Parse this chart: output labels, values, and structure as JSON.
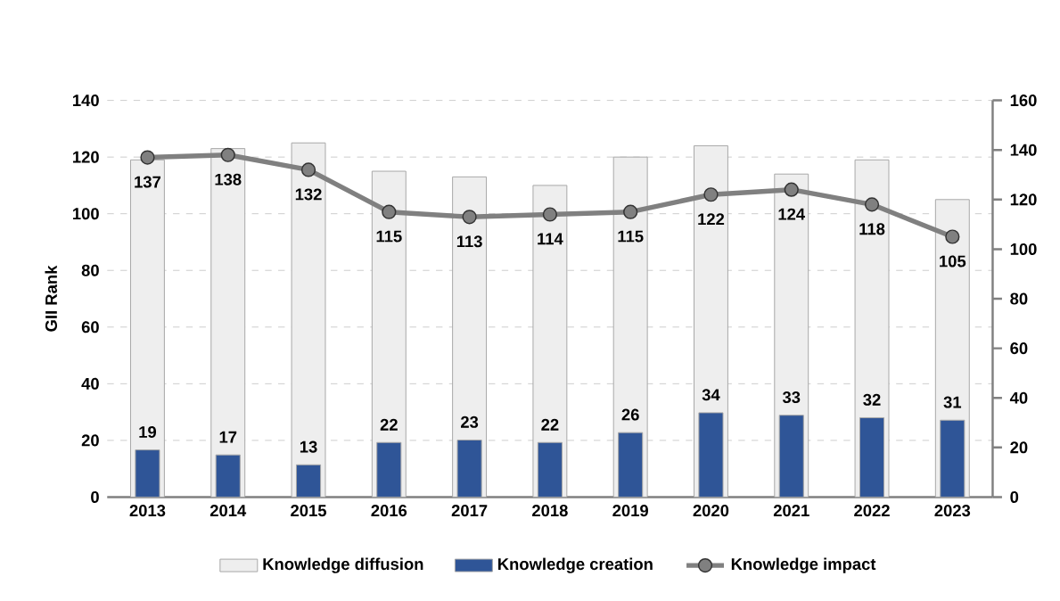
{
  "chart_data": {
    "type": "bar",
    "ylabel": "GII Rank",
    "categories": [
      "2013",
      "2014",
      "2015",
      "2016",
      "2017",
      "2018",
      "2019",
      "2020",
      "2021",
      "2022",
      "2023"
    ],
    "series": [
      {
        "name": "Knowledge diffusion",
        "color": "#eeeeee",
        "values": [
          119,
          123,
          125,
          115,
          113,
          110,
          120,
          124,
          114,
          119,
          105
        ]
      },
      {
        "name": "Knowledge creation",
        "axis": "y2",
        "color": "#2f5597",
        "values": [
          19,
          17,
          13,
          22,
          23,
          22,
          26,
          34,
          33,
          32,
          31
        ],
        "value_labels": [
          "19",
          "17",
          "13",
          "22",
          "23",
          "22",
          "26",
          "34",
          "33",
          "32",
          "31"
        ]
      },
      {
        "name": "Knowledge impact",
        "type": "line",
        "axis": "y2",
        "color": "#808080",
        "values": [
          137,
          138,
          132,
          115,
          113,
          114,
          115,
          122,
          124,
          118,
          105
        ],
        "value_labels": [
          "137",
          "138",
          "132",
          "115",
          "113",
          "114",
          "115",
          "122",
          "124",
          "118",
          "105"
        ]
      }
    ],
    "ylim": [
      0,
      140
    ],
    "yticks": [
      0,
      20,
      40,
      60,
      80,
      100,
      120,
      140
    ],
    "y2lim": [
      0,
      160
    ],
    "y2ticks": [
      0,
      20,
      40,
      60,
      80,
      100,
      120,
      140,
      160
    ],
    "grid": "y",
    "legend": "bottom",
    "marker": "circle"
  }
}
